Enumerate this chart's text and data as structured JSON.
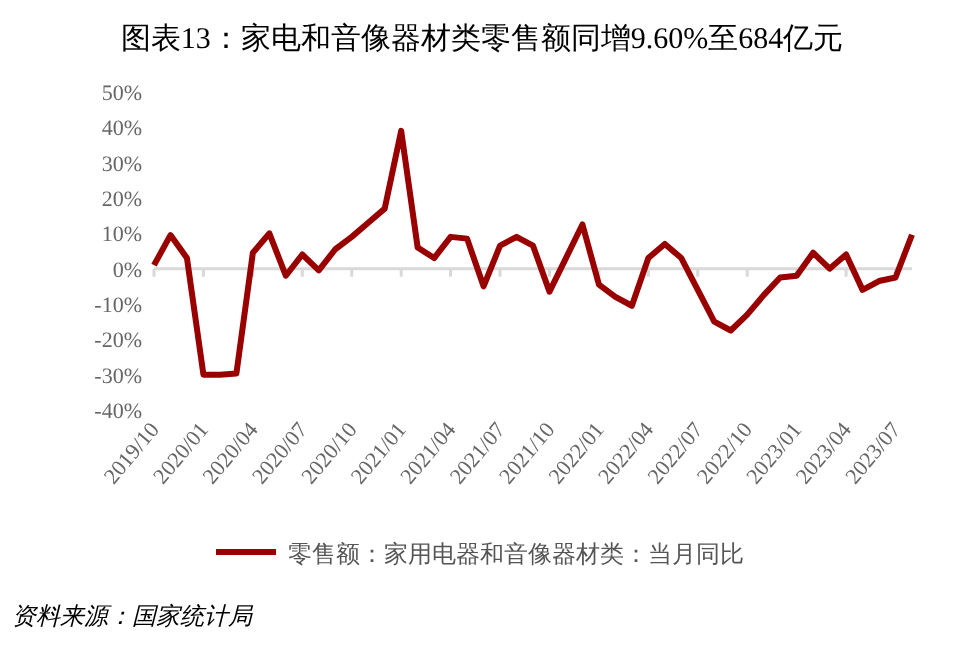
{
  "chart_data": {
    "type": "line",
    "title": "图表13：家电和音像器材类零售额同增9.60%至684亿元",
    "categories": [
      "2019/10",
      null,
      null,
      "2020/01",
      null,
      null,
      "2020/04",
      null,
      null,
      "2020/07",
      null,
      null,
      "2020/10",
      null,
      null,
      "2021/01",
      null,
      null,
      "2021/04",
      null,
      null,
      "2021/07",
      null,
      null,
      "2021/10",
      null,
      null,
      "2022/01",
      null,
      null,
      "2022/04",
      null,
      null,
      "2022/07",
      null,
      null,
      "2022/10",
      null,
      null,
      "2023/01",
      null,
      null,
      "2023/04",
      null,
      null,
      "2023/07",
      null
    ],
    "series": [
      {
        "name": "零售额：家用电器和音像器材类：当月同比",
        "color": "#990000",
        "values": [
          1,
          9.5,
          3,
          -30,
          -30,
          -29.7,
          4.5,
          10,
          -2,
          4,
          -0.5,
          5.5,
          9,
          13,
          17,
          39,
          6,
          3,
          9,
          8.5,
          -5,
          6.5,
          9,
          6.5,
          -6.5,
          3,
          12.5,
          -4.5,
          -8,
          -10.5,
          3,
          7,
          3,
          -6,
          -15,
          -17.5,
          -13,
          -7.5,
          -2.5,
          -2,
          4.5,
          0,
          4,
          -6,
          -3.5,
          -2.5,
          9.6
        ]
      }
    ],
    "ylim": [
      -40,
      50
    ],
    "yticks": [
      {
        "value": -40,
        "label": "-40%"
      },
      {
        "value": -30,
        "label": "-30%"
      },
      {
        "value": -20,
        "label": "-20%"
      },
      {
        "value": -10,
        "label": "-10%"
      },
      {
        "value": 0,
        "label": "0%"
      },
      {
        "value": 10,
        "label": "10%"
      },
      {
        "value": 20,
        "label": "20%"
      },
      {
        "value": 30,
        "label": "30%"
      },
      {
        "value": 40,
        "label": "40%"
      },
      {
        "value": 50,
        "label": "50%"
      }
    ],
    "legend": "bottom",
    "grid": false,
    "ref_lines": [
      {
        "axis": "y",
        "value": 0,
        "color": "#d9d9d9"
      }
    ],
    "annotations": [
      "资料来源：国家统计局"
    ]
  }
}
